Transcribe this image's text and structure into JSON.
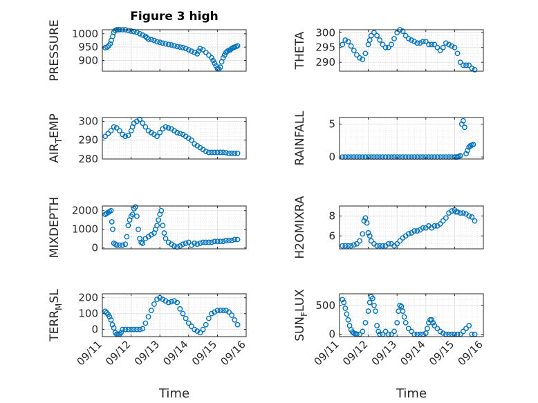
{
  "figure_title": "Figure 3 high",
  "xlabel_left": "Time",
  "xlabel_right": "Time",
  "marker_color": "#0072BD",
  "xticks": [
    "09/11",
    "09/12",
    "09/13",
    "09/14",
    "09/15",
    "09/16"
  ],
  "chart_data": [
    {
      "type": "scatter",
      "ylabel": "PRESSURE",
      "xlim": [
        0,
        5
      ],
      "ylim": [
        860,
        1015
      ],
      "yticks": [
        900,
        950,
        1000
      ],
      "ytick_labels": [
        "900",
        "950",
        "1000"
      ],
      "x": [
        0.1,
        0.17,
        0.22,
        0.27,
        0.31,
        0.36,
        0.4,
        0.45,
        0.5,
        0.55,
        0.6,
        0.7,
        0.8,
        0.9,
        1.0,
        1.1,
        1.2,
        1.3,
        1.4,
        1.5,
        1.55,
        1.6,
        1.7,
        1.8,
        1.9,
        2.0,
        2.1,
        2.2,
        2.3,
        2.4,
        2.5,
        2.6,
        2.7,
        2.8,
        2.9,
        3.0,
        3.1,
        3.2,
        3.3,
        3.35,
        3.4,
        3.5,
        3.6,
        3.7,
        3.8,
        3.85,
        3.9,
        3.95,
        4.0,
        4.05,
        4.1,
        4.15,
        4.2,
        4.25,
        4.3,
        4.35,
        4.4,
        4.45,
        4.5,
        4.55,
        4.6,
        4.65,
        4.7
      ],
      "y": [
        948,
        950,
        955,
        962,
        975,
        990,
        1005,
        1012,
        1015,
        1015,
        1015,
        1015,
        1015,
        1012,
        1010,
        1008,
        1005,
        1000,
        995,
        990,
        985,
        980,
        978,
        975,
        970,
        968,
        965,
        962,
        960,
        958,
        955,
        952,
        950,
        948,
        945,
        940,
        935,
        930,
        925,
        935,
        945,
        940,
        930,
        920,
        910,
        900,
        890,
        880,
        870,
        868,
        875,
        895,
        910,
        920,
        930,
        935,
        938,
        940,
        945,
        948,
        950,
        952,
        955
      ]
    },
    {
      "type": "scatter",
      "ylabel": "THETA",
      "xlim": [
        0,
        5
      ],
      "ylim": [
        287,
        301
      ],
      "yticks": [
        290,
        295,
        300
      ],
      "ytick_labels": [
        "290",
        "295",
        "300"
      ],
      "x": [
        0.1,
        0.2,
        0.3,
        0.4,
        0.5,
        0.6,
        0.7,
        0.8,
        0.9,
        1.0,
        1.05,
        1.1,
        1.2,
        1.3,
        1.4,
        1.5,
        1.6,
        1.7,
        1.8,
        1.9,
        2.0,
        2.1,
        2.2,
        2.3,
        2.4,
        2.5,
        2.6,
        2.7,
        2.8,
        2.9,
        3.0,
        3.1,
        3.2,
        3.3,
        3.4,
        3.5,
        3.6,
        3.7,
        3.8,
        3.9,
        4.0,
        4.1,
        4.2,
        4.3,
        4.4,
        4.5,
        4.6,
        4.7
      ],
      "y": [
        296,
        297.5,
        297,
        295.5,
        294,
        292.5,
        291.5,
        291,
        293,
        296,
        297.5,
        299,
        300,
        299,
        297.5,
        296,
        295,
        295,
        296,
        298,
        300,
        301,
        300.5,
        299,
        298,
        297.5,
        297,
        296.5,
        296.5,
        297,
        297,
        296,
        296,
        296,
        295,
        294,
        295,
        296.5,
        296,
        295.5,
        295,
        293,
        290,
        289,
        289,
        289,
        288,
        287.5
      ]
    },
    {
      "type": "scatter",
      "ylabel_main": "AIR",
      "ylabel_sub": "T",
      "ylabel_rest": "EMP",
      "xlim": [
        0,
        5
      ],
      "ylim": [
        280,
        302
      ],
      "yticks": [
        280,
        290,
        300
      ],
      "ytick_labels": [
        "280",
        "290",
        "300"
      ],
      "x": [
        0.1,
        0.2,
        0.3,
        0.4,
        0.5,
        0.6,
        0.7,
        0.8,
        0.9,
        1.0,
        1.05,
        1.1,
        1.2,
        1.3,
        1.4,
        1.5,
        1.6,
        1.7,
        1.8,
        1.9,
        2.0,
        2.1,
        2.2,
        2.3,
        2.4,
        2.5,
        2.6,
        2.7,
        2.8,
        2.9,
        3.0,
        3.1,
        3.2,
        3.3,
        3.4,
        3.5,
        3.6,
        3.7,
        3.8,
        3.9,
        4.0,
        4.1,
        4.2,
        4.3,
        4.4,
        4.5,
        4.6,
        4.7
      ],
      "y": [
        292,
        293.5,
        295,
        297,
        296.5,
        295,
        293,
        292,
        292.5,
        295,
        297,
        299,
        300,
        301,
        299,
        297,
        295,
        294,
        293,
        292,
        294,
        296,
        297,
        296.5,
        296,
        295,
        294,
        293.5,
        293,
        292,
        291,
        290,
        288,
        287,
        286,
        285,
        284,
        283.5,
        283.5,
        283.5,
        283.5,
        283.5,
        283.5,
        283.3,
        283,
        283,
        283,
        283
      ]
    },
    {
      "type": "scatter",
      "ylabel": "RAINFALL",
      "xlim": [
        0,
        5
      ],
      "ylim": [
        -0.3,
        6
      ],
      "yticks": [
        0,
        5
      ],
      "ytick_labels": [
        "0",
        "5"
      ],
      "x": [
        0.1,
        0.2,
        0.3,
        0.4,
        0.5,
        0.6,
        0.7,
        0.8,
        0.9,
        1.0,
        1.1,
        1.2,
        1.3,
        1.4,
        1.5,
        1.6,
        1.7,
        1.8,
        1.9,
        2.0,
        2.1,
        2.2,
        2.3,
        2.4,
        2.5,
        2.6,
        2.7,
        2.8,
        2.9,
        3.0,
        3.1,
        3.2,
        3.3,
        3.4,
        3.5,
        3.6,
        3.7,
        3.8,
        3.9,
        4.0,
        4.05,
        4.1,
        4.15,
        4.2,
        4.25,
        4.3,
        4.35,
        4.4,
        4.45,
        4.5,
        4.55,
        4.6,
        4.65
      ],
      "y": [
        0,
        0,
        0,
        0,
        0,
        0,
        0,
        0,
        0,
        0,
        0,
        0,
        0,
        0,
        0,
        0,
        0,
        0,
        0,
        0,
        0,
        0,
        0,
        0,
        0,
        0,
        0,
        0,
        0,
        0,
        0,
        0,
        0,
        0,
        0,
        0,
        0,
        0,
        0,
        0,
        0,
        0,
        0.1,
        0.2,
        5.0,
        5.5,
        4.5,
        0.5,
        1.0,
        1.5,
        1.7,
        1.8,
        1.9
      ]
    },
    {
      "type": "scatter",
      "ylabel": "MIXDEPTH",
      "xlim": [
        0,
        5
      ],
      "ylim": [
        -50,
        2250
      ],
      "yticks": [
        0,
        1000,
        2000
      ],
      "ytick_labels": [
        "0",
        "1000",
        "2000"
      ],
      "x": [
        0.1,
        0.15,
        0.2,
        0.25,
        0.3,
        0.33,
        0.36,
        0.4,
        0.45,
        0.5,
        0.6,
        0.7,
        0.8,
        0.85,
        0.9,
        0.95,
        1.0,
        1.05,
        1.1,
        1.15,
        1.2,
        1.25,
        1.3,
        1.35,
        1.4,
        1.5,
        1.6,
        1.7,
        1.8,
        1.85,
        1.9,
        1.95,
        2.0,
        2.05,
        2.1,
        2.15,
        2.2,
        2.3,
        2.4,
        2.5,
        2.6,
        2.7,
        2.8,
        2.9,
        3.0,
        3.1,
        3.2,
        3.3,
        3.4,
        3.5,
        3.6,
        3.7,
        3.8,
        3.9,
        4.0,
        4.1,
        4.2,
        4.3,
        4.4,
        4.5,
        4.6,
        4.7
      ],
      "y": [
        1800,
        1850,
        1900,
        1950,
        2000,
        1400,
        1000,
        250,
        200,
        150,
        150,
        150,
        200,
        600,
        1200,
        1500,
        1700,
        1800,
        2100,
        2200,
        1700,
        1000,
        500,
        300,
        250,
        500,
        600,
        700,
        800,
        1000,
        1200,
        1500,
        1800,
        2000,
        1200,
        800,
        500,
        300,
        200,
        100,
        50,
        100,
        200,
        250,
        300,
        150,
        250,
        200,
        250,
        300,
        300,
        300,
        300,
        350,
        350,
        350,
        350,
        400,
        400,
        400,
        450,
        450
      ]
    },
    {
      "type": "scatter",
      "ylabel": "H2OMIXRA",
      "xlim": [
        0,
        5
      ],
      "ylim": [
        4.7,
        9.0
      ],
      "yticks": [
        6,
        8
      ],
      "ytick_labels": [
        "6",
        "8"
      ],
      "x": [
        0.1,
        0.2,
        0.3,
        0.4,
        0.5,
        0.6,
        0.7,
        0.8,
        0.85,
        0.9,
        0.95,
        1.0,
        1.05,
        1.1,
        1.2,
        1.3,
        1.4,
        1.5,
        1.6,
        1.7,
        1.8,
        1.9,
        2.0,
        2.1,
        2.2,
        2.3,
        2.4,
        2.5,
        2.6,
        2.7,
        2.8,
        2.9,
        3.0,
        3.1,
        3.2,
        3.3,
        3.4,
        3.5,
        3.6,
        3.7,
        3.8,
        3.9,
        4.0,
        4.05,
        4.1,
        4.2,
        4.3,
        4.4,
        4.5,
        4.6,
        4.7
      ],
      "y": [
        5.0,
        5.0,
        5.0,
        5.0,
        5.1,
        5.2,
        5.5,
        6.2,
        7.5,
        7.8,
        7.3,
        6.3,
        6.0,
        5.5,
        5.2,
        5.0,
        5.0,
        5.0,
        5.0,
        5.2,
        5.2,
        5.0,
        5.2,
        5.5,
        5.8,
        6.0,
        6.2,
        6.3,
        6.5,
        6.5,
        6.6,
        6.8,
        6.8,
        7.0,
        6.8,
        7.0,
        7.0,
        7.2,
        7.5,
        7.8,
        8.3,
        8.5,
        8.6,
        8.4,
        8.4,
        8.3,
        8.3,
        8.2,
        8.0,
        7.9,
        7.5
      ]
    },
    {
      "type": "scatter",
      "ylabel_main": "TERR",
      "ylabel_sub": "M",
      "ylabel_rest": "SL",
      "xlim": [
        0,
        5
      ],
      "ylim": [
        -45,
        225
      ],
      "yticks": [
        0,
        100,
        200
      ],
      "ytick_labels": [
        "0",
        "100",
        "200"
      ],
      "x": [
        0.1,
        0.15,
        0.2,
        0.25,
        0.3,
        0.35,
        0.4,
        0.45,
        0.5,
        0.55,
        0.6,
        0.65,
        0.7,
        0.8,
        0.9,
        1.0,
        1.1,
        1.2,
        1.3,
        1.4,
        1.5,
        1.6,
        1.7,
        1.8,
        1.9,
        2.0,
        2.1,
        2.2,
        2.3,
        2.4,
        2.5,
        2.6,
        2.7,
        2.8,
        2.9,
        3.0,
        3.1,
        3.2,
        3.3,
        3.4,
        3.5,
        3.6,
        3.7,
        3.8,
        3.9,
        4.0,
        4.1,
        4.2,
        4.3,
        4.4,
        4.5,
        4.6,
        4.7
      ],
      "y": [
        115,
        105,
        95,
        80,
        60,
        30,
        10,
        -20,
        -30,
        -30,
        -30,
        -20,
        0,
        0,
        0,
        0,
        0,
        0,
        0,
        5,
        40,
        80,
        120,
        160,
        190,
        200,
        190,
        180,
        170,
        175,
        180,
        170,
        130,
        100,
        70,
        40,
        20,
        0,
        -10,
        -20,
        0,
        30,
        70,
        100,
        110,
        120,
        120,
        120,
        120,
        110,
        90,
        60,
        30
      ]
    },
    {
      "type": "scatter",
      "ylabel_main": "SUN",
      "ylabel_sub": "F",
      "ylabel_rest": "LUX",
      "xlim": [
        0,
        5
      ],
      "ylim": [
        -40,
        700
      ],
      "yticks": [
        0,
        500
      ],
      "ytick_labels": [
        "0",
        "500"
      ],
      "x": [
        0.1,
        0.15,
        0.2,
        0.25,
        0.3,
        0.35,
        0.4,
        0.45,
        0.5,
        0.55,
        0.6,
        0.7,
        0.8,
        0.9,
        1.0,
        1.05,
        1.1,
        1.15,
        1.2,
        1.25,
        1.3,
        1.35,
        1.4,
        1.5,
        1.6,
        1.7,
        1.8,
        1.9,
        2.0,
        2.05,
        2.1,
        2.15,
        2.2,
        2.25,
        2.3,
        2.4,
        2.5,
        2.6,
        2.7,
        2.8,
        2.9,
        3.0,
        3.05,
        3.1,
        3.15,
        3.2,
        3.25,
        3.3,
        3.4,
        3.5,
        3.6,
        3.7,
        3.8,
        3.9,
        4.0,
        4.1,
        4.2,
        4.3,
        4.4,
        4.5,
        4.6,
        4.7
      ],
      "y": [
        600,
        550,
        450,
        350,
        250,
        150,
        80,
        40,
        20,
        10,
        0,
        0,
        50,
        200,
        400,
        550,
        650,
        620,
        500,
        400,
        150,
        50,
        0,
        0,
        50,
        0,
        0,
        50,
        200,
        400,
        500,
        480,
        400,
        300,
        200,
        100,
        50,
        0,
        0,
        0,
        0,
        20,
        100,
        200,
        250,
        250,
        200,
        150,
        100,
        50,
        20,
        0,
        0,
        0,
        0,
        0,
        0,
        50,
        100,
        150,
        0,
        0
      ]
    }
  ]
}
